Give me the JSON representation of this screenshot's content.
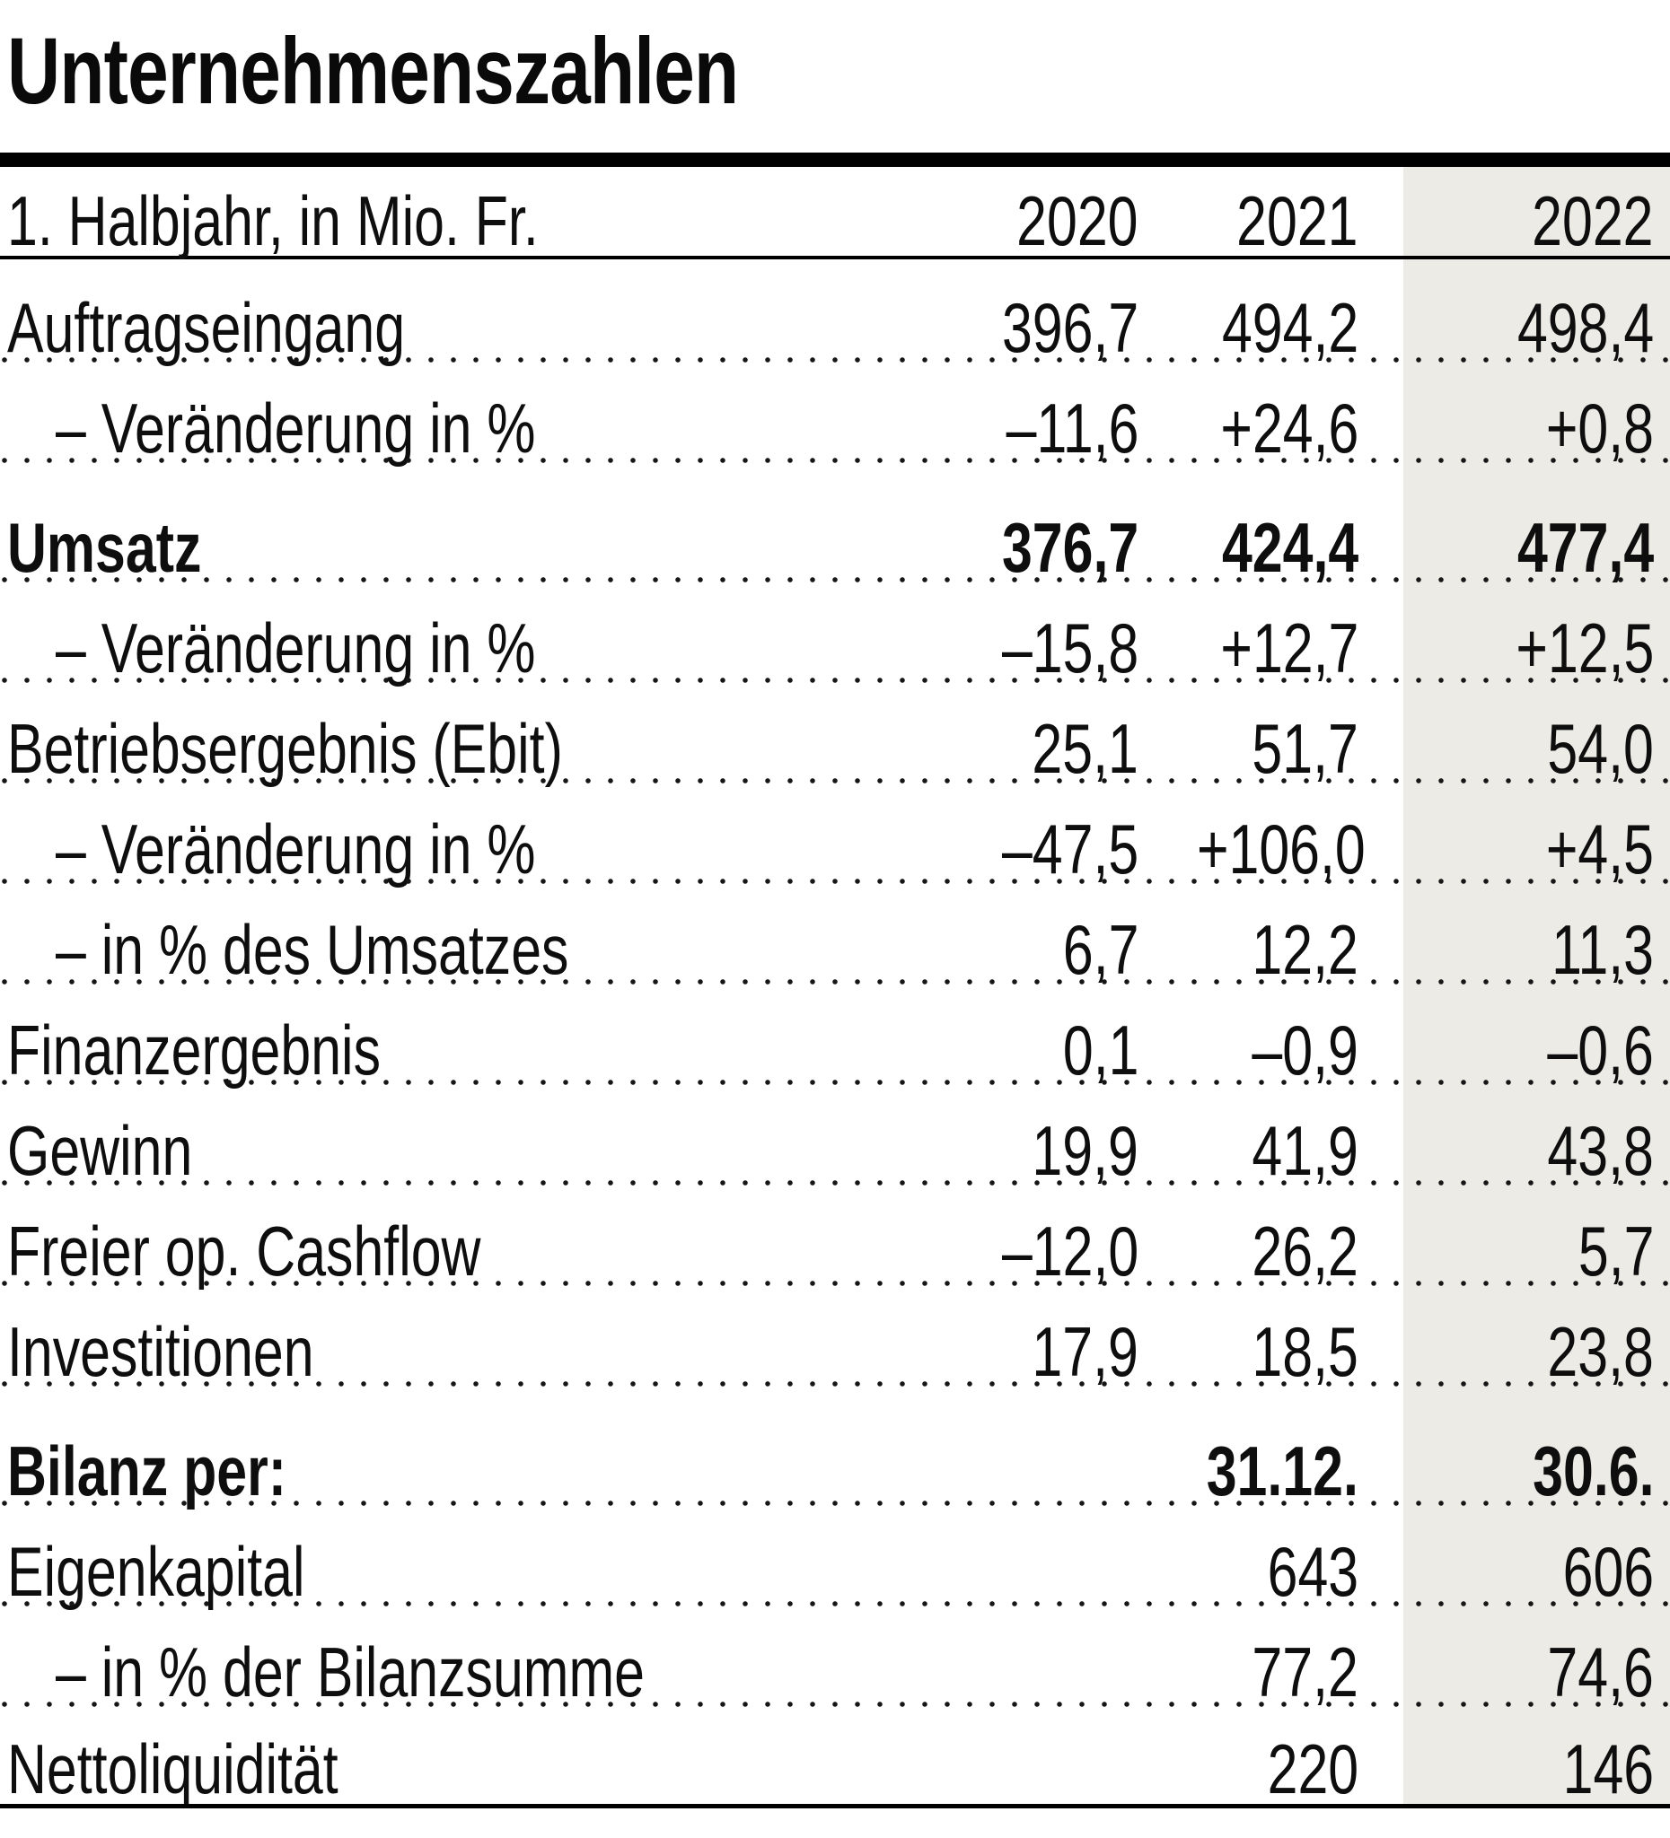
{
  "title": "Unternehmenszahlen",
  "colors": {
    "highlight_column": "#ecebe5",
    "text": "#0e0e0e",
    "rule": "#000000"
  },
  "table": {
    "unit_label": "1. Halbjahr, in Mio. Fr.",
    "columns": [
      "2020",
      "2021",
      "2022"
    ],
    "highlighted_column": "2022",
    "rows": [
      {
        "label": "Auftragseingang",
        "indent": false,
        "bold": false,
        "group": false,
        "values": [
          "396,7",
          "494,2",
          "498,4"
        ]
      },
      {
        "label": "– Veränderung in %",
        "indent": true,
        "bold": false,
        "group": false,
        "values": [
          "–11,6",
          "+24,6",
          "+0,8"
        ]
      },
      {
        "label": "Umsatz",
        "indent": false,
        "bold": true,
        "group": true,
        "values": [
          "376,7",
          "424,4",
          "477,4"
        ]
      },
      {
        "label": "– Veränderung in %",
        "indent": true,
        "bold": false,
        "group": false,
        "values": [
          "–15,8",
          "+12,7",
          "+12,5"
        ]
      },
      {
        "label": "Betriebsergebnis (Ebit)",
        "indent": false,
        "bold": false,
        "group": false,
        "values": [
          "25,1",
          "51,7",
          "54,0"
        ]
      },
      {
        "label": "– Veränderung in %",
        "indent": true,
        "bold": false,
        "group": false,
        "values": [
          "–47,5",
          "+106,0",
          "+4,5"
        ]
      },
      {
        "label": "– in % des Umsatzes",
        "indent": true,
        "bold": false,
        "group": false,
        "values": [
          "6,7",
          "12,2",
          "11,3"
        ]
      },
      {
        "label": "Finanzergebnis",
        "indent": false,
        "bold": false,
        "group": false,
        "values": [
          "0,1",
          "–0,9",
          "–0,6"
        ]
      },
      {
        "label": "Gewinn",
        "indent": false,
        "bold": false,
        "group": false,
        "values": [
          "19,9",
          "41,9",
          "43,8"
        ]
      },
      {
        "label": "Freier op. Cashflow",
        "indent": false,
        "bold": false,
        "group": false,
        "values": [
          "–12,0",
          "26,2",
          "5,7"
        ]
      },
      {
        "label": "Investitionen",
        "indent": false,
        "bold": false,
        "group": false,
        "values": [
          "17,9",
          "18,5",
          "23,8"
        ]
      },
      {
        "label": "Bilanz per:",
        "indent": false,
        "bold": true,
        "group": true,
        "values": [
          "",
          "31.12.",
          "30.6."
        ]
      },
      {
        "label": "Eigenkapital",
        "indent": false,
        "bold": false,
        "group": false,
        "values": [
          "",
          "643",
          "606"
        ]
      },
      {
        "label": "– in % der Bilanzsumme",
        "indent": true,
        "bold": false,
        "group": false,
        "values": [
          "",
          "77,2",
          "74,6"
        ]
      },
      {
        "label": "Nettoliquidität",
        "indent": false,
        "bold": false,
        "group": false,
        "values": [
          "",
          "220",
          "146"
        ]
      }
    ]
  },
  "chart_data": {
    "type": "table",
    "title": "Unternehmenszahlen",
    "subtitle": "1. Halbjahr, in Mio. Fr.",
    "categories": [
      "2020",
      "2021",
      "2022"
    ],
    "highlighted_category": "2022",
    "series": [
      {
        "name": "Auftragseingang",
        "values": [
          396.7,
          494.2,
          498.4
        ]
      },
      {
        "name": "Auftragseingang Veränderung in %",
        "values": [
          -11.6,
          24.6,
          0.8
        ]
      },
      {
        "name": "Umsatz",
        "values": [
          376.7,
          424.4,
          477.4
        ]
      },
      {
        "name": "Umsatz Veränderung in %",
        "values": [
          -15.8,
          12.7,
          12.5
        ]
      },
      {
        "name": "Betriebsergebnis (Ebit)",
        "values": [
          25.1,
          51.7,
          54.0
        ]
      },
      {
        "name": "Ebit Veränderung in %",
        "values": [
          -47.5,
          106.0,
          4.5
        ]
      },
      {
        "name": "Ebit in % des Umsatzes",
        "values": [
          6.7,
          12.2,
          11.3
        ]
      },
      {
        "name": "Finanzergebnis",
        "values": [
          0.1,
          -0.9,
          -0.6
        ]
      },
      {
        "name": "Gewinn",
        "values": [
          19.9,
          41.9,
          43.8
        ]
      },
      {
        "name": "Freier op. Cashflow",
        "values": [
          -12.0,
          26.2,
          5.7
        ]
      },
      {
        "name": "Investitionen",
        "values": [
          17.9,
          18.5,
          23.8
        ]
      },
      {
        "name": "Bilanz per:",
        "values": [
          null,
          "31.12.",
          "30.6."
        ]
      },
      {
        "name": "Eigenkapital",
        "values": [
          null,
          643,
          606
        ]
      },
      {
        "name": "Eigenkapital in % der Bilanzsumme",
        "values": [
          null,
          77.2,
          74.6
        ]
      },
      {
        "name": "Nettoliquidität",
        "values": [
          null,
          220,
          146
        ]
      }
    ],
    "layout": {
      "grid": "dotted row separators",
      "legend": "none",
      "notes": "2022 column shaded beige; Umsatz and Bilanz per: rows bold"
    }
  }
}
